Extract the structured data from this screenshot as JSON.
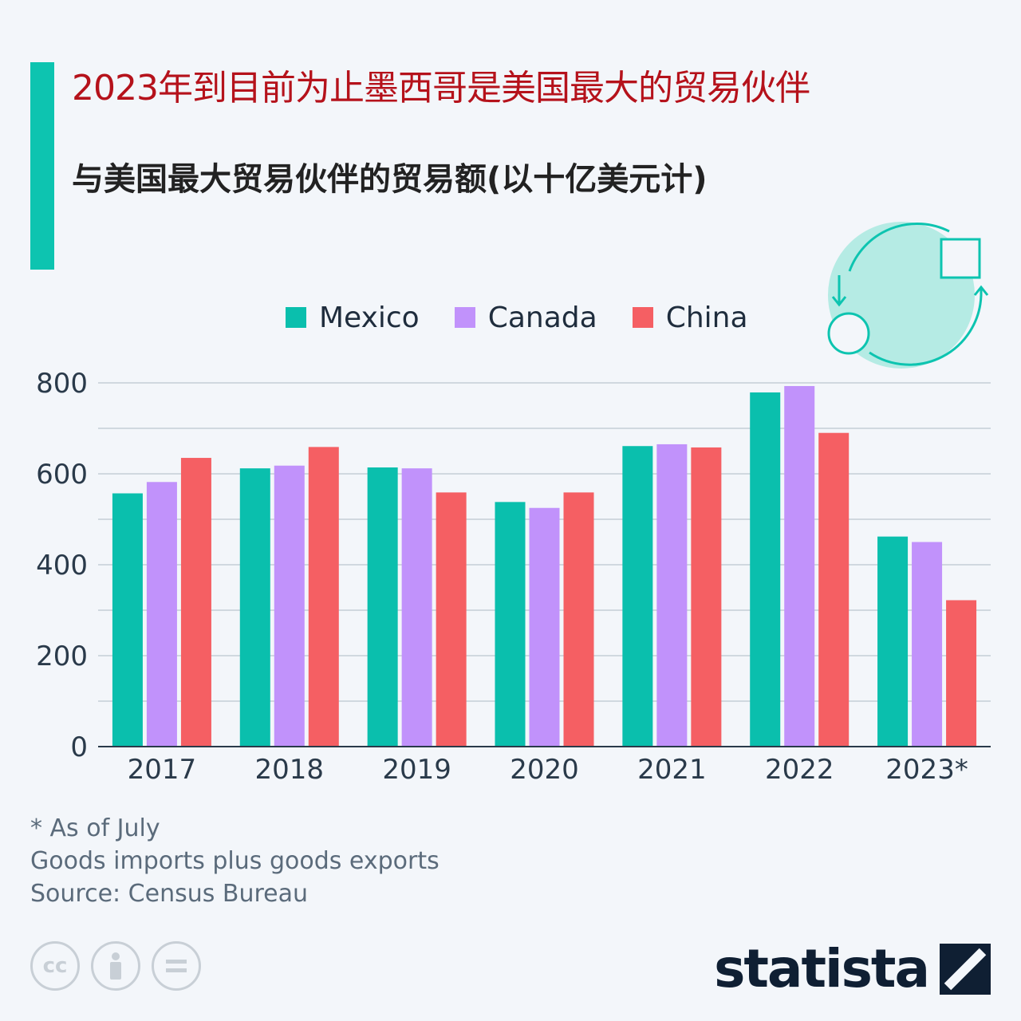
{
  "header": {
    "title": "2023年到目前为止墨西哥是美国最大的贸易伙伴",
    "subtitle": "与美国最大贸易伙伴的贸易额(以十亿美元计)"
  },
  "colors": {
    "accent": "#0dc4b0",
    "mexico": "#0abfad",
    "canada": "#c192fb",
    "china": "#f55f63",
    "title": "#b5121b"
  },
  "chart_data": {
    "type": "bar",
    "categories": [
      "2017",
      "2018",
      "2019",
      "2020",
      "2021",
      "2022",
      "2023*"
    ],
    "series": [
      {
        "name": "Mexico",
        "values": [
          557,
          612,
          614,
          538,
          661,
          779,
          462
        ]
      },
      {
        "name": "Canada",
        "values": [
          582,
          618,
          612,
          525,
          665,
          793,
          450
        ]
      },
      {
        "name": "China",
        "values": [
          635,
          659,
          559,
          559,
          658,
          690,
          322
        ]
      }
    ],
    "yticks": [
      "0",
      "200",
      "400",
      "600",
      "800"
    ],
    "ylim": [
      0,
      800
    ],
    "grid": true,
    "legend_position": "top"
  },
  "notes": {
    "footnote": "* As of July",
    "description": "Goods imports plus goods exports",
    "source": "Source: Census Bureau"
  },
  "footer": {
    "brand": "statista",
    "license_icons": [
      "cc-icon",
      "person-icon",
      "equals-icon"
    ]
  }
}
